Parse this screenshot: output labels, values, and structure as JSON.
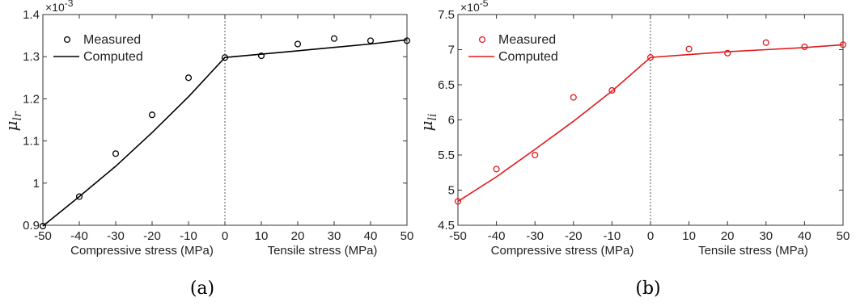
{
  "chart_data": [
    {
      "type": "line",
      "caption": "(a)",
      "ylabel_main": "μ",
      "ylabel_sub": "lr",
      "multiplier": "×10",
      "multiplier_exp": "-3",
      "xlabel_left": "Compressive stress (MPa)",
      "xlabel_right": "Tensile stress (MPa)",
      "xlim": [
        -50,
        50
      ],
      "ylim": [
        0.9,
        1.4
      ],
      "xticks": [
        -50,
        -40,
        -30,
        -20,
        -10,
        0,
        10,
        20,
        30,
        40,
        50
      ],
      "xtick_labels": [
        "-50",
        "-40",
        "-30",
        "-20",
        "-10",
        "0",
        "10",
        "20",
        "30",
        "40",
        "50"
      ],
      "yticks": [
        0.9,
        1.0,
        1.1,
        1.2,
        1.3,
        1.4
      ],
      "ytick_labels": [
        "0.9",
        "1",
        "1.1",
        "1.2",
        "1.3",
        "1.4"
      ],
      "color": "#000000",
      "legend": {
        "position": "top-left",
        "measured_label": "Measured",
        "computed_label": "Computed"
      },
      "measured": {
        "x": [
          -50,
          -40,
          -30,
          -20,
          -10,
          0,
          10,
          20,
          30,
          40,
          50
        ],
        "y": [
          0.898,
          0.968,
          1.07,
          1.162,
          1.25,
          1.298,
          1.302,
          1.33,
          1.343,
          1.338,
          1.338
        ]
      },
      "computed": {
        "x": [
          -50,
          -40,
          -30,
          -20,
          -10,
          0,
          10,
          20,
          30,
          40,
          50
        ],
        "y": [
          0.898,
          0.968,
          1.04,
          1.12,
          1.205,
          1.298,
          1.306,
          1.314,
          1.322,
          1.33,
          1.34
        ]
      }
    },
    {
      "type": "line",
      "caption": "(b)",
      "ylabel_main": "μ",
      "ylabel_sub": "li",
      "multiplier": "×10",
      "multiplier_exp": "-5",
      "xlabel_left": "Compressive stress (MPa)",
      "xlabel_right": "Tensile stress (MPa)",
      "xlim": [
        -50,
        50
      ],
      "ylim": [
        4.5,
        7.5
      ],
      "xticks": [
        -50,
        -40,
        -30,
        -20,
        -10,
        0,
        10,
        20,
        30,
        40,
        50
      ],
      "xtick_labels": [
        "-50",
        "-40",
        "-30",
        "-20",
        "-10",
        "0",
        "10",
        "20",
        "30",
        "40",
        "50"
      ],
      "yticks": [
        4.5,
        5.0,
        5.5,
        6.0,
        6.5,
        7.0,
        7.5
      ],
      "ytick_labels": [
        "4.5",
        "5",
        "5.5",
        "6",
        "6.5",
        "7",
        "7.5"
      ],
      "color": "#e0191b",
      "legend": {
        "position": "top-left",
        "measured_label": "Measured",
        "computed_label": "Computed"
      },
      "measured": {
        "x": [
          -50,
          -40,
          -30,
          -20,
          -10,
          0,
          10,
          20,
          30,
          40,
          50
        ],
        "y": [
          4.84,
          5.3,
          5.5,
          6.32,
          6.42,
          6.89,
          7.01,
          6.95,
          7.1,
          7.04,
          7.07
        ]
      },
      "computed": {
        "x": [
          -50,
          -40,
          -30,
          -20,
          -10,
          0,
          10,
          20,
          30,
          40,
          50
        ],
        "y": [
          4.84,
          5.19,
          5.58,
          5.98,
          6.41,
          6.89,
          6.93,
          6.97,
          7.0,
          7.03,
          7.07
        ]
      }
    }
  ]
}
